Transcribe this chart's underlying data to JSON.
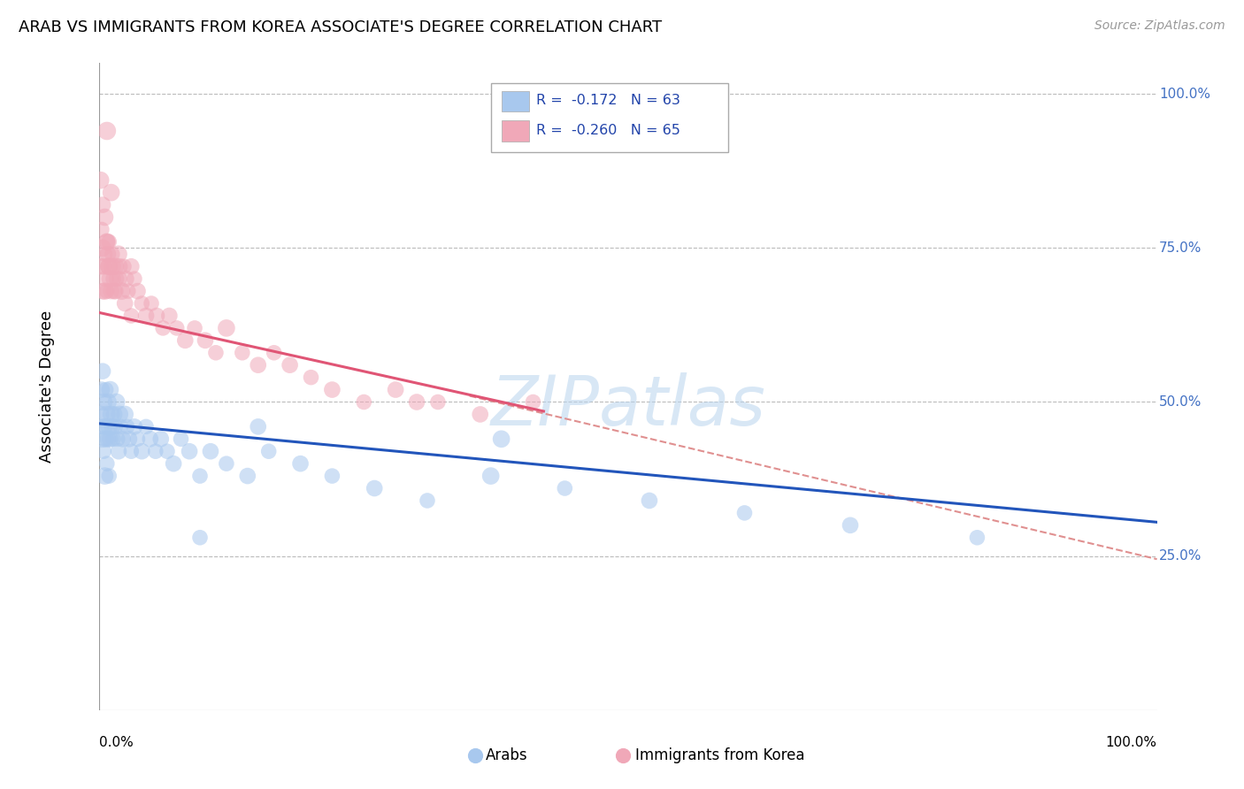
{
  "title": "ARAB VS IMMIGRANTS FROM KOREA ASSOCIATE'S DEGREE CORRELATION CHART",
  "source": "Source: ZipAtlas.com",
  "ylabel": "Associate's Degree",
  "blue_color": "#a8c8ee",
  "pink_color": "#f0a8b8",
  "blue_line_color": "#2255bb",
  "pink_line_color": "#e05575",
  "dash_color": "#e09090",
  "watermark": "ZIPatlas",
  "ytick_color": "#4472c4",
  "blue_x": [
    0.001,
    0.002,
    0.002,
    0.003,
    0.003,
    0.004,
    0.004,
    0.005,
    0.005,
    0.006,
    0.006,
    0.007,
    0.007,
    0.008,
    0.008,
    0.009,
    0.009,
    0.01,
    0.01,
    0.011,
    0.012,
    0.013,
    0.014,
    0.015,
    0.016,
    0.017,
    0.018,
    0.019,
    0.02,
    0.022,
    0.024,
    0.026,
    0.028,
    0.03,
    0.033,
    0.036,
    0.04,
    0.044,
    0.048,
    0.053,
    0.058,
    0.064,
    0.07,
    0.077,
    0.085,
    0.095,
    0.105,
    0.12,
    0.14,
    0.16,
    0.19,
    0.22,
    0.26,
    0.31,
    0.37,
    0.44,
    0.52,
    0.61,
    0.71,
    0.83,
    0.095,
    0.15,
    0.38
  ],
  "blue_y": [
    0.48,
    0.52,
    0.46,
    0.44,
    0.55,
    0.5,
    0.42,
    0.46,
    0.38,
    0.52,
    0.44,
    0.48,
    0.4,
    0.5,
    0.44,
    0.46,
    0.38,
    0.52,
    0.44,
    0.48,
    0.46,
    0.44,
    0.48,
    0.46,
    0.5,
    0.44,
    0.42,
    0.48,
    0.46,
    0.44,
    0.48,
    0.46,
    0.44,
    0.42,
    0.46,
    0.44,
    0.42,
    0.46,
    0.44,
    0.42,
    0.44,
    0.42,
    0.4,
    0.44,
    0.42,
    0.38,
    0.42,
    0.4,
    0.38,
    0.42,
    0.4,
    0.38,
    0.36,
    0.34,
    0.38,
    0.36,
    0.34,
    0.32,
    0.3,
    0.28,
    0.28,
    0.46,
    0.44
  ],
  "blue_size": [
    200,
    180,
    160,
    200,
    180,
    200,
    160,
    180,
    200,
    160,
    180,
    200,
    160,
    200,
    180,
    200,
    160,
    200,
    180,
    200,
    180,
    160,
    180,
    160,
    200,
    160,
    180,
    200,
    160,
    180,
    200,
    160,
    180,
    160,
    180,
    160,
    180,
    160,
    180,
    160,
    180,
    160,
    180,
    160,
    180,
    160,
    180,
    160,
    180,
    160,
    180,
    160,
    180,
    160,
    200,
    160,
    180,
    160,
    180,
    160,
    160,
    180,
    200
  ],
  "pink_x": [
    0.001,
    0.002,
    0.003,
    0.003,
    0.004,
    0.005,
    0.005,
    0.006,
    0.007,
    0.007,
    0.008,
    0.009,
    0.009,
    0.01,
    0.011,
    0.012,
    0.013,
    0.014,
    0.015,
    0.016,
    0.018,
    0.019,
    0.021,
    0.023,
    0.025,
    0.027,
    0.03,
    0.033,
    0.036,
    0.04,
    0.044,
    0.049,
    0.054,
    0.06,
    0.066,
    0.073,
    0.081,
    0.09,
    0.1,
    0.11,
    0.12,
    0.135,
    0.15,
    0.165,
    0.18,
    0.2,
    0.22,
    0.25,
    0.28,
    0.32,
    0.36,
    0.41,
    0.001,
    0.003,
    0.005,
    0.007,
    0.009,
    0.012,
    0.015,
    0.019,
    0.024,
    0.03,
    0.007,
    0.011,
    0.3
  ],
  "pink_y": [
    0.72,
    0.78,
    0.68,
    0.75,
    0.72,
    0.68,
    0.74,
    0.7,
    0.76,
    0.68,
    0.74,
    0.72,
    0.76,
    0.7,
    0.68,
    0.72,
    0.7,
    0.68,
    0.72,
    0.7,
    0.74,
    0.72,
    0.68,
    0.72,
    0.7,
    0.68,
    0.72,
    0.7,
    0.68,
    0.66,
    0.64,
    0.66,
    0.64,
    0.62,
    0.64,
    0.62,
    0.6,
    0.62,
    0.6,
    0.58,
    0.62,
    0.58,
    0.56,
    0.58,
    0.56,
    0.54,
    0.52,
    0.5,
    0.52,
    0.5,
    0.48,
    0.5,
    0.86,
    0.82,
    0.8,
    0.76,
    0.72,
    0.74,
    0.68,
    0.7,
    0.66,
    0.64,
    0.94,
    0.84,
    0.5
  ],
  "pink_size": [
    180,
    160,
    180,
    200,
    180,
    200,
    160,
    180,
    200,
    160,
    180,
    200,
    160,
    200,
    180,
    200,
    160,
    180,
    200,
    160,
    200,
    180,
    200,
    160,
    180,
    160,
    180,
    160,
    180,
    160,
    180,
    160,
    180,
    160,
    180,
    160,
    180,
    160,
    180,
    160,
    200,
    160,
    180,
    160,
    180,
    160,
    180,
    160,
    180,
    160,
    180,
    160,
    200,
    180,
    200,
    180,
    200,
    160,
    180,
    160,
    180,
    160,
    220,
    200,
    180
  ],
  "blue_line_x0": 0.0,
  "blue_line_x1": 1.0,
  "blue_line_y0": 0.465,
  "blue_line_y1": 0.305,
  "pink_line_x0": 0.0,
  "pink_line_x1": 0.42,
  "pink_line_y0": 0.645,
  "pink_line_y1": 0.485,
  "dash_line_x0": 0.35,
  "dash_line_x1": 1.0,
  "dash_line_y0": 0.51,
  "dash_line_y1": 0.245,
  "xlim": [
    0.0,
    1.0
  ],
  "ylim": [
    0.0,
    1.05
  ]
}
